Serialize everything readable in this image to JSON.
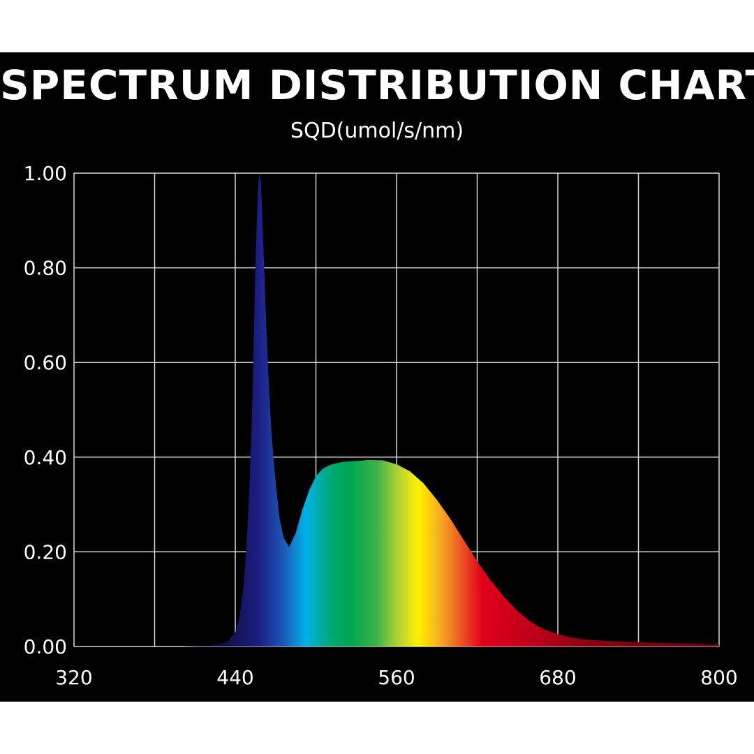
{
  "chart_data": {
    "type": "area",
    "title": "SPECTRUM DISTRIBUTION CHART",
    "subtitle": "SQD(umol/s/nm)",
    "xlabel": "",
    "ylabel": "",
    "xlim": [
      320,
      800
    ],
    "ylim": [
      0,
      1
    ],
    "x_tick_labels": [
      "320",
      "440",
      "560",
      "680",
      "800"
    ],
    "x_grid_values": [
      320,
      380,
      440,
      500,
      560,
      620,
      680,
      740,
      800
    ],
    "y_tick_labels": [
      "0.00",
      "0.20",
      "0.40",
      "0.60",
      "0.80",
      "1.00"
    ],
    "y_tick_values": [
      0,
      0.2,
      0.4,
      0.6,
      0.8,
      1.0
    ],
    "grid": true,
    "background_color": "#000000",
    "grid_color": "#d8d8d8",
    "text_color": "#ffffff",
    "series": [
      {
        "x": [
          320,
          400,
          420,
          430,
          435,
          440,
          443,
          446,
          448,
          450,
          452,
          453,
          454,
          455,
          456,
          457,
          458,
          459,
          460,
          461,
          462,
          463,
          465,
          467,
          469,
          471,
          473,
          476,
          480,
          485,
          490,
          495,
          500,
          505,
          510,
          515,
          520,
          530,
          540,
          550,
          560,
          570,
          580,
          590,
          600,
          610,
          620,
          630,
          640,
          650,
          660,
          670,
          680,
          690,
          700,
          720,
          740,
          760,
          780,
          800
        ],
        "y": [
          0.0,
          0.0,
          0.002,
          0.006,
          0.012,
          0.03,
          0.06,
          0.12,
          0.2,
          0.3,
          0.45,
          0.55,
          0.68,
          0.8,
          0.9,
          0.97,
          1.0,
          0.98,
          0.92,
          0.84,
          0.76,
          0.68,
          0.55,
          0.45,
          0.38,
          0.32,
          0.27,
          0.23,
          0.21,
          0.24,
          0.29,
          0.33,
          0.36,
          0.375,
          0.383,
          0.387,
          0.39,
          0.392,
          0.394,
          0.393,
          0.385,
          0.37,
          0.345,
          0.31,
          0.27,
          0.225,
          0.18,
          0.14,
          0.105,
          0.075,
          0.052,
          0.036,
          0.026,
          0.019,
          0.015,
          0.011,
          0.009,
          0.007,
          0.006,
          0.004
        ]
      }
    ]
  }
}
